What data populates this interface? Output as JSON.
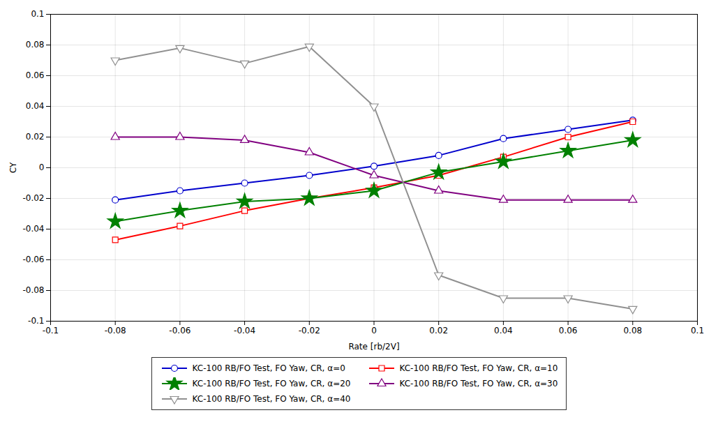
{
  "chart_data": {
    "type": "line",
    "xlabel": "Rate [rb/2V]",
    "ylabel": "CY",
    "x": [
      -0.08,
      -0.06,
      -0.04,
      -0.02,
      0.0,
      0.02,
      0.04,
      0.06,
      0.08
    ],
    "series": [
      {
        "name": "KC-100 RB/FO Test, FO Yaw, CR, α=0",
        "color": "#0000CC",
        "marker": "circle-open",
        "values": [
          -0.021,
          -0.015,
          -0.01,
          -0.005,
          0.001,
          0.008,
          0.019,
          0.025,
          0.031
        ]
      },
      {
        "name": "KC-100 RB/FO Test, FO Yaw, CR, α=10",
        "color": "#FF0000",
        "marker": "square-open",
        "values": [
          -0.047,
          -0.038,
          -0.028,
          -0.02,
          -0.013,
          -0.005,
          0.007,
          0.02,
          0.03
        ]
      },
      {
        "name": "KC-100 RB/FO Test, FO Yaw, CR, α=20",
        "color": "#008000",
        "marker": "star",
        "values": [
          -0.035,
          -0.028,
          -0.022,
          -0.02,
          -0.015,
          -0.003,
          0.004,
          0.011,
          0.018
        ]
      },
      {
        "name": "KC-100 RB/FO Test, FO Yaw, CR, α=30",
        "color": "#800080",
        "marker": "triangle-open",
        "values": [
          0.02,
          0.02,
          0.018,
          0.01,
          -0.005,
          -0.015,
          -0.021,
          -0.021,
          -0.021
        ]
      },
      {
        "name": "KC-100 RB/FO Test, FO Yaw, CR, α=40",
        "color": "#909090",
        "marker": "triangle-down-open",
        "values": [
          0.07,
          0.078,
          0.068,
          0.079,
          0.04,
          -0.07,
          -0.085,
          -0.085,
          -0.092
        ]
      }
    ],
    "xlim": [
      -0.1,
      0.1
    ],
    "ylim": [
      -0.1,
      0.1
    ],
    "xticks": [
      -0.1,
      -0.08,
      -0.06,
      -0.04,
      -0.02,
      0.0,
      0.02,
      0.04,
      0.06,
      0.08,
      0.1
    ],
    "yticks": [
      -0.1,
      -0.08,
      -0.06,
      -0.04,
      -0.02,
      0.0,
      0.02,
      0.04,
      0.06,
      0.08,
      0.1
    ],
    "grid": true,
    "legend": "bottom"
  }
}
